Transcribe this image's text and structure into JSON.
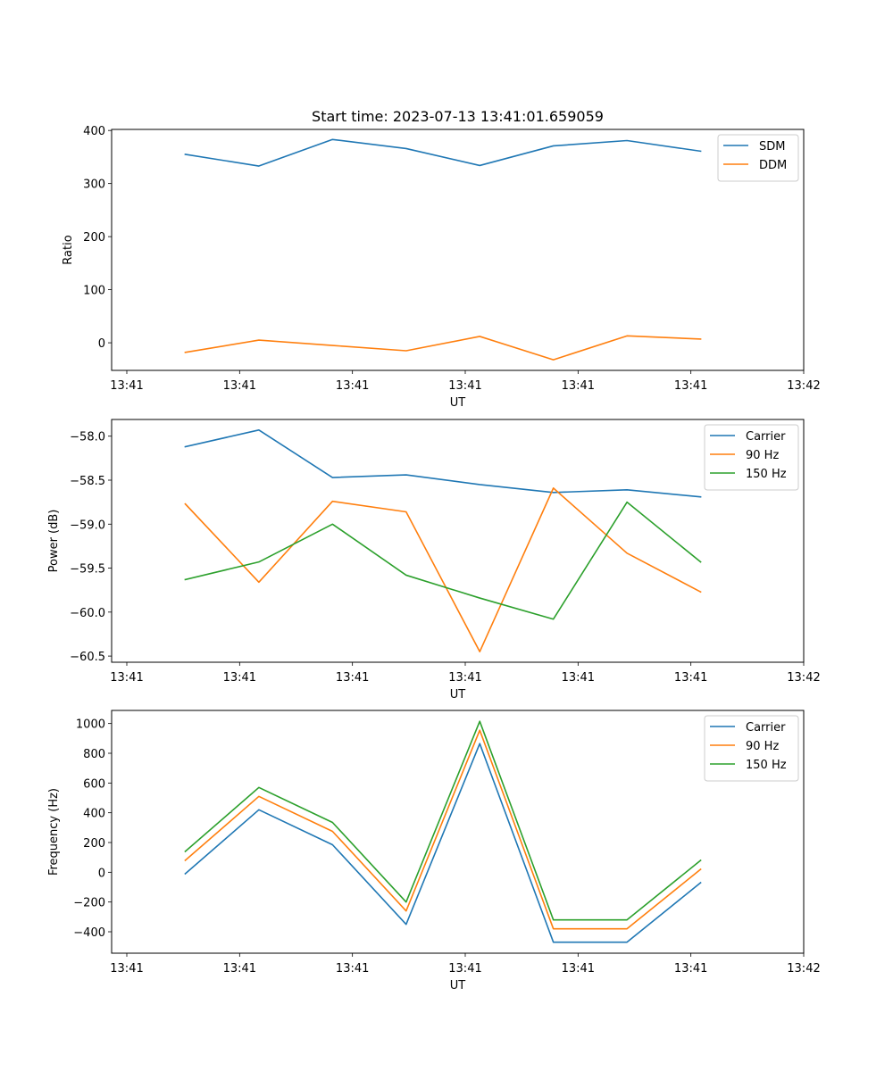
{
  "figure_title": "Start time: 2023-07-13 13:41:01.659059",
  "chart_data": [
    {
      "type": "line",
      "title": "Start time: 2023-07-13 13:41:01.659059",
      "xlabel": "UT",
      "ylabel": "Ratio",
      "x_tick_labels": [
        "13:41",
        "13:41",
        "13:41",
        "13:41",
        "13:41",
        "13:41",
        "13:42"
      ],
      "x_range": [
        0,
        9.4
      ],
      "x": [
        1,
        2,
        3,
        4,
        5,
        6,
        7,
        8
      ],
      "ylim": [
        -52,
        402
      ],
      "y_ticks": [
        0,
        100,
        200,
        300,
        400
      ],
      "y_tick_labels": [
        "0",
        "100",
        "200",
        "300",
        "400"
      ],
      "grid": false,
      "legend": "top-right",
      "series": [
        {
          "name": "SDM",
          "color": "#1f77b4",
          "values": [
            355,
            333,
            383,
            366,
            334,
            371,
            381,
            361
          ]
        },
        {
          "name": "DDM",
          "color": "#ff7f0e",
          "values": [
            -18,
            5,
            -5,
            -15,
            12,
            -32,
            13,
            7
          ]
        }
      ]
    },
    {
      "type": "line",
      "title": "",
      "xlabel": "UT",
      "ylabel": "Power (dB)",
      "x_tick_labels": [
        "13:41",
        "13:41",
        "13:41",
        "13:41",
        "13:41",
        "13:41",
        "13:42"
      ],
      "x_range": [
        0,
        9.4
      ],
      "x": [
        1,
        2,
        3,
        4,
        5,
        6,
        7,
        8
      ],
      "ylim": [
        -60.57,
        -57.81
      ],
      "y_ticks": [
        -58.0,
        -58.5,
        -59.0,
        -59.5,
        -60.0,
        -60.5
      ],
      "y_tick_labels": [
        "−58.0",
        "−58.5",
        "−59.0",
        "−59.5",
        "−60.0",
        "−60.5"
      ],
      "grid": false,
      "legend": "top-right",
      "series": [
        {
          "name": "Carrier",
          "color": "#1f77b4",
          "values": [
            -58.12,
            -57.93,
            -58.47,
            -58.44,
            -58.55,
            -58.64,
            -58.61,
            -58.69
          ]
        },
        {
          "name": "90 Hz",
          "color": "#ff7f0e",
          "values": [
            -58.77,
            -59.66,
            -58.74,
            -58.86,
            -60.45,
            -58.59,
            -59.33,
            -59.77
          ]
        },
        {
          "name": "150 Hz",
          "color": "#2ca02c",
          "values": [
            -59.63,
            -59.43,
            -59.0,
            -59.58,
            -59.84,
            -60.08,
            -58.75,
            -59.43
          ]
        }
      ]
    },
    {
      "type": "line",
      "title": "",
      "xlabel": "UT",
      "ylabel": "Frequency (Hz)",
      "x_tick_labels": [
        "13:41",
        "13:41",
        "13:41",
        "13:41",
        "13:41",
        "13:41",
        "13:42"
      ],
      "x_range": [
        0,
        9.4
      ],
      "x": [
        1,
        2,
        3,
        4,
        5,
        6,
        7,
        8
      ],
      "ylim": [
        -544,
        1088
      ],
      "y_ticks": [
        -400,
        -200,
        0,
        200,
        400,
        600,
        800,
        1000
      ],
      "y_tick_labels": [
        "−400",
        "−200",
        "0",
        "200",
        "400",
        "600",
        "800",
        "1000"
      ],
      "grid": false,
      "legend": "top-right",
      "series": [
        {
          "name": "Carrier",
          "color": "#1f77b4",
          "values": [
            -10,
            420,
            185,
            -350,
            865,
            -470,
            -470,
            -70
          ]
        },
        {
          "name": "90 Hz",
          "color": "#ff7f0e",
          "values": [
            80,
            510,
            275,
            -260,
            955,
            -380,
            -380,
            20
          ]
        },
        {
          "name": "150 Hz",
          "color": "#2ca02c",
          "values": [
            140,
            570,
            335,
            -200,
            1015,
            -320,
            -320,
            80
          ]
        }
      ]
    }
  ]
}
